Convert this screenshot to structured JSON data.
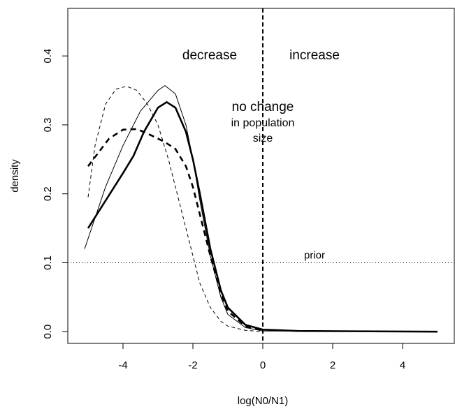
{
  "chart_data": {
    "type": "line",
    "xlabel": "log(N0/N1)",
    "ylabel": "density",
    "xlim": [
      -5.58,
      5.48
    ],
    "ylim": [
      -0.017,
      0.469
    ],
    "xticks": [
      -4,
      -2,
      0,
      2,
      4
    ],
    "yticks": [
      {
        "value": 0,
        "label": "0.0"
      },
      0.1,
      0.2,
      0.3,
      0.4
    ],
    "series": [
      {
        "color": "#000",
        "width": 1,
        "dash": "none",
        "x": [
          -5.1,
          -4.5,
          -4,
          -3.5,
          -3,
          -2.8,
          -2.5,
          -2.2,
          -2,
          -1.8,
          -1.5,
          -1.2,
          -1,
          -0.5,
          0,
          5
        ],
        "values": [
          0.12,
          0.21,
          0.27,
          0.32,
          0.35,
          0.357,
          0.345,
          0.3,
          0.25,
          0.19,
          0.11,
          0.05,
          0.025,
          0.006,
          0.001,
          0
        ]
      },
      {
        "color": "#000",
        "width": 2.6,
        "dash": "none",
        "x": [
          -5,
          -4.5,
          -4,
          -3.7,
          -3.4,
          -3,
          -2.75,
          -2.5,
          -2.2,
          -2,
          -1.8,
          -1.5,
          -1.2,
          -1,
          -0.5,
          0,
          1,
          5
        ],
        "values": [
          0.15,
          0.19,
          0.23,
          0.255,
          0.29,
          0.325,
          0.333,
          0.325,
          0.29,
          0.25,
          0.2,
          0.12,
          0.06,
          0.035,
          0.01,
          0.003,
          0.001,
          0
        ]
      },
      {
        "color": "#000",
        "width": 1,
        "dash": "5 4",
        "x": [
          -5,
          -4.8,
          -4.5,
          -4.2,
          -3.9,
          -3.6,
          -3.3,
          -3,
          -2.7,
          -2.4,
          -2.1,
          -1.8,
          -1.5,
          -1.2,
          -1,
          -0.5,
          0
        ],
        "values": [
          0.195,
          0.27,
          0.33,
          0.352,
          0.356,
          0.35,
          0.33,
          0.3,
          0.25,
          0.19,
          0.13,
          0.07,
          0.035,
          0.015,
          0.008,
          0.002,
          0
        ]
      },
      {
        "color": "#000",
        "width": 2.6,
        "dash": "8 6",
        "x": [
          -5,
          -4.7,
          -4.4,
          -4,
          -3.6,
          -3.2,
          -2.8,
          -2.5,
          -2.2,
          -2,
          -1.8,
          -1.5,
          -1.2,
          -1,
          -0.5,
          0
        ],
        "values": [
          0.24,
          0.26,
          0.28,
          0.293,
          0.294,
          0.285,
          0.275,
          0.265,
          0.24,
          0.21,
          0.17,
          0.11,
          0.055,
          0.03,
          0.008,
          0.002
        ]
      }
    ],
    "hlines": [
      {
        "value": 0.1,
        "dash": "1 3",
        "width": 1
      }
    ],
    "vlines": [
      {
        "value": 0,
        "dash": "6 4",
        "width": 2
      }
    ],
    "annotations": [
      {
        "text": "decrease",
        "x": -1.52,
        "y": 0.4,
        "size": "large"
      },
      {
        "text": "increase",
        "x": 1.48,
        "y": 0.4,
        "size": "large"
      },
      {
        "text": "no change",
        "x": 0,
        "y": 0.325,
        "size": "large"
      },
      {
        "text": "in population",
        "x": 0,
        "y": 0.302,
        "size": "small"
      },
      {
        "text": "size",
        "x": 0,
        "y": 0.28,
        "size": "small"
      },
      {
        "text": "prior",
        "x": 1.48,
        "y": 0.11,
        "size": "normal"
      }
    ]
  }
}
